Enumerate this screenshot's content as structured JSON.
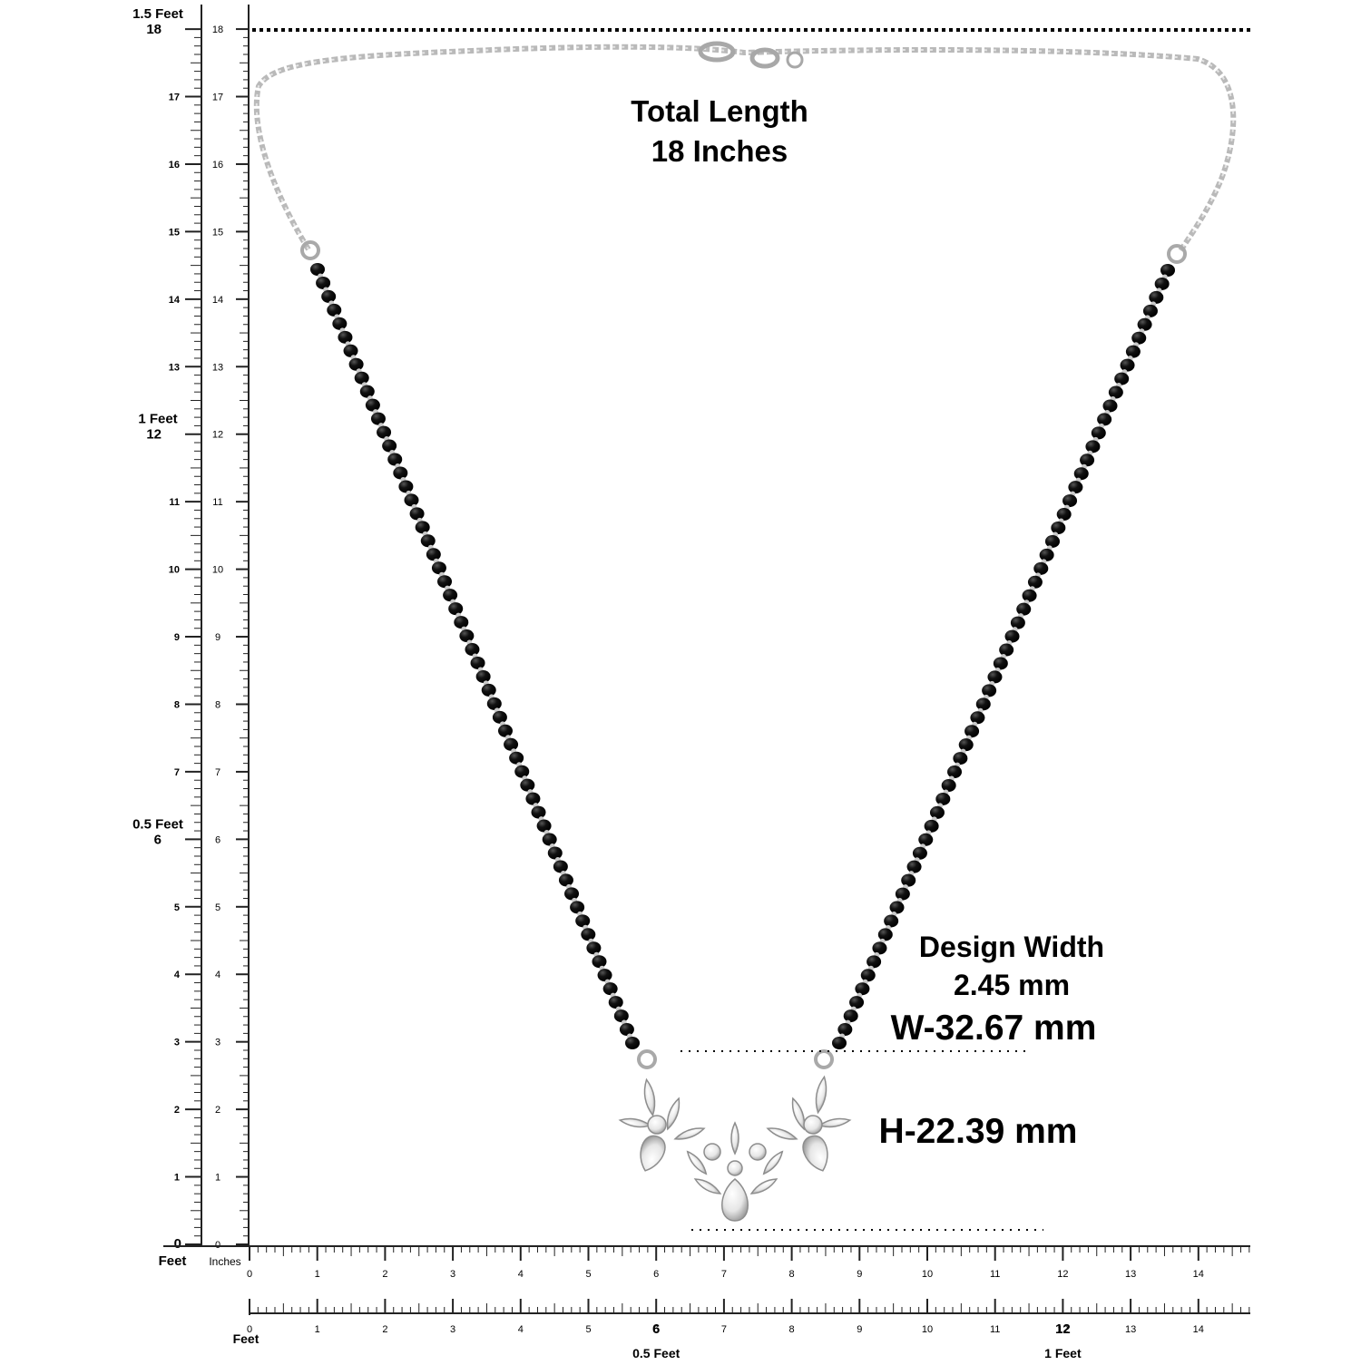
{
  "annotations": {
    "total_length_line1": "Total Length",
    "total_length_line2": "18 Inches",
    "design_width_line1": "Design Width",
    "design_width_line2": "2.45 mm",
    "width": "W-32.67 mm",
    "height": "H-22.39 mm"
  },
  "left_ruler": {
    "feet_marks": [
      {
        "inch": 18,
        "feet": "1.5 Feet",
        "num": "18"
      },
      {
        "inch": 12,
        "feet": "1 Feet",
        "num": "12"
      },
      {
        "inch": 6,
        "feet": "0.5 Feet",
        "num": "6"
      },
      {
        "inch": 0,
        "feet": "Feet",
        "num": "0"
      }
    ],
    "inch_labels_left": [
      "17",
      "16",
      "15",
      "14",
      "13",
      "11",
      "10",
      "9",
      "8",
      "7",
      "5",
      "4",
      "3",
      "2",
      "1"
    ],
    "inch_labels_right": [
      "0",
      "1",
      "2",
      "3",
      "4",
      "5",
      "6",
      "7",
      "8",
      "9",
      "10",
      "11",
      "12",
      "13",
      "14",
      "15",
      "16",
      "17",
      "18"
    ],
    "units_label": "Inches"
  },
  "bottom_ruler_top": {
    "labels": [
      "0",
      "1",
      "2",
      "3",
      "4",
      "5",
      "6",
      "7",
      "8",
      "9",
      "10",
      "11",
      "12",
      "13",
      "14"
    ]
  },
  "bottom_ruler_bottom": {
    "labels": [
      "0",
      "1",
      "2",
      "3",
      "4",
      "5",
      "6",
      "7",
      "8",
      "9",
      "10",
      "11",
      "12",
      "13",
      "14"
    ],
    "big_labels": [
      {
        "inch": 6,
        "num": "6",
        "feet": "0.5 Feet"
      },
      {
        "inch": 12,
        "num": "12",
        "feet": "1 Feet"
      }
    ],
    "origin_feet": "Feet"
  },
  "colors": {
    "chain": "#b9b9b9",
    "bead": "#0c0c0c",
    "stone": "#eeeeee",
    "ruler": "#222222"
  },
  "icons": [
    "necklace-image",
    "pendant-icon",
    "clasp-icon"
  ]
}
